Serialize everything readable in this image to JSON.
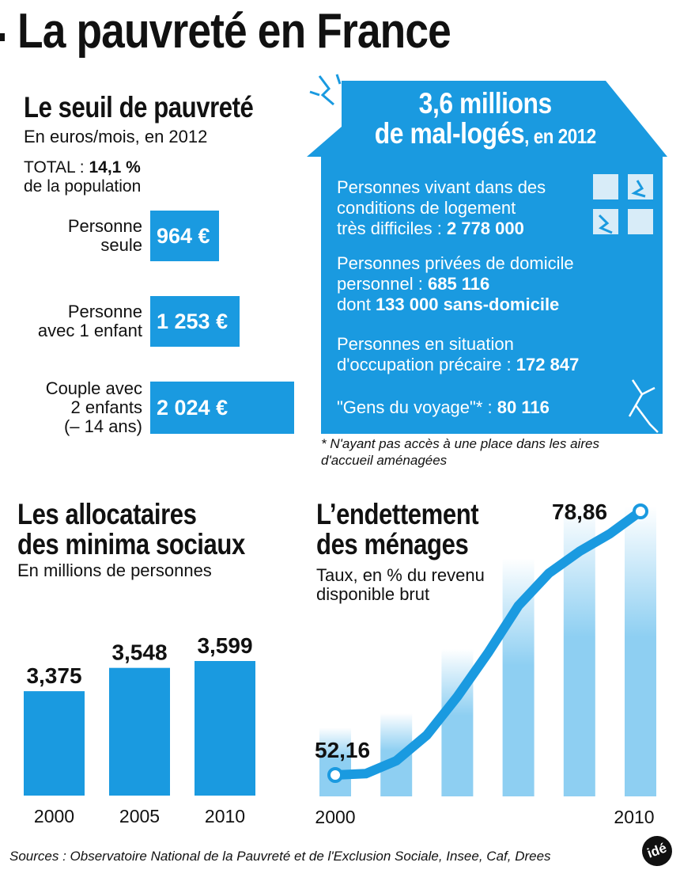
{
  "title": "La pauvreté en France",
  "seuil": {
    "heading": "Le seuil de pauvreté",
    "subtitle": "En euros/mois, en 2012",
    "total_line1_prefix": "TOTAL : ",
    "total_value": "14,1 %",
    "total_line2": "de la population"
  },
  "mal_loges": {
    "headline1": "3,6 millions",
    "headline2": "de mal-logés",
    "headline2_suffix": ", en 2012",
    "items": [
      {
        "text1": "Personnes vivant dans des",
        "text2": "conditions de logement",
        "text3_prefix": "très difficiles : ",
        "value": "2 778 000"
      },
      {
        "text1": "Personnes privées de domicile",
        "text2_prefix": "personnel : ",
        "value": "685 116",
        "text3_prefix": "dont ",
        "value2": "133 000 sans-domicile"
      },
      {
        "text1": "Personnes en situation",
        "text2_prefix": "d'occupation précaire : ",
        "value": "172 847"
      },
      {
        "text_prefix": "\"Gens du voyage\"* : ",
        "value": "80 116"
      }
    ],
    "footnote1": "* N'ayant pas accès à une place dans les aires",
    "footnote2": "d'accueil aménagées"
  },
  "allocataires": {
    "heading1": "Les allocataires",
    "heading2": "des minima sociaux",
    "subtitle": "En millions de personnes"
  },
  "endettement": {
    "heading1": "L’endettement",
    "heading2": "des ménages",
    "subtitle1": "Taux, en % du revenu",
    "subtitle2": "disponible brut"
  },
  "chart_data": [
    {
      "type": "bar",
      "orientation": "horizontal",
      "title": "Le seuil de pauvreté",
      "unit": "euros/mois",
      "categories": [
        "Personne seule",
        "Personne avec 1 enfant",
        "Couple avec 2 enfants (– 14 ans)"
      ],
      "category_lines": [
        [
          "Personne",
          "seule"
        ],
        [
          "Personne",
          "avec 1 enfant"
        ],
        [
          "Couple avec",
          "2 enfants",
          "(– 14 ans)"
        ]
      ],
      "values": [
        964,
        1253,
        2024
      ],
      "value_labels": [
        "964 €",
        "1 253 €",
        "2 024 €"
      ],
      "color": "#1a9ae0"
    },
    {
      "type": "bar",
      "title": "Les allocataires des minima sociaux",
      "unit": "millions de personnes",
      "categories": [
        "2000",
        "2005",
        "2010"
      ],
      "values": [
        3.375,
        3.548,
        3.599
      ],
      "value_labels": [
        "3,375",
        "3,548",
        "3,599"
      ],
      "color": "#1a9ae0"
    },
    {
      "type": "line",
      "title": "L’endettement des ménages",
      "unit": "% du revenu disponible brut",
      "x": [
        2000,
        2001,
        2002,
        2003,
        2004,
        2005,
        2006,
        2007,
        2008,
        2009,
        2010
      ],
      "values": [
        52.16,
        52.3,
        53.6,
        56.2,
        60.1,
        64.5,
        69.3,
        72.6,
        74.8,
        76.6,
        78.86
      ],
      "labelled": {
        "first": "52,16",
        "last": "78,86"
      },
      "x_tick_labels": [
        "2000",
        "2010"
      ],
      "color": "#1a9ae0",
      "background_bars_color": "#8ecff2"
    }
  ],
  "sources": "Sources : Observatoire National de la Pauvreté et de l'Exclusion Sociale, Insee, Caf, Drees",
  "logo": "idé"
}
